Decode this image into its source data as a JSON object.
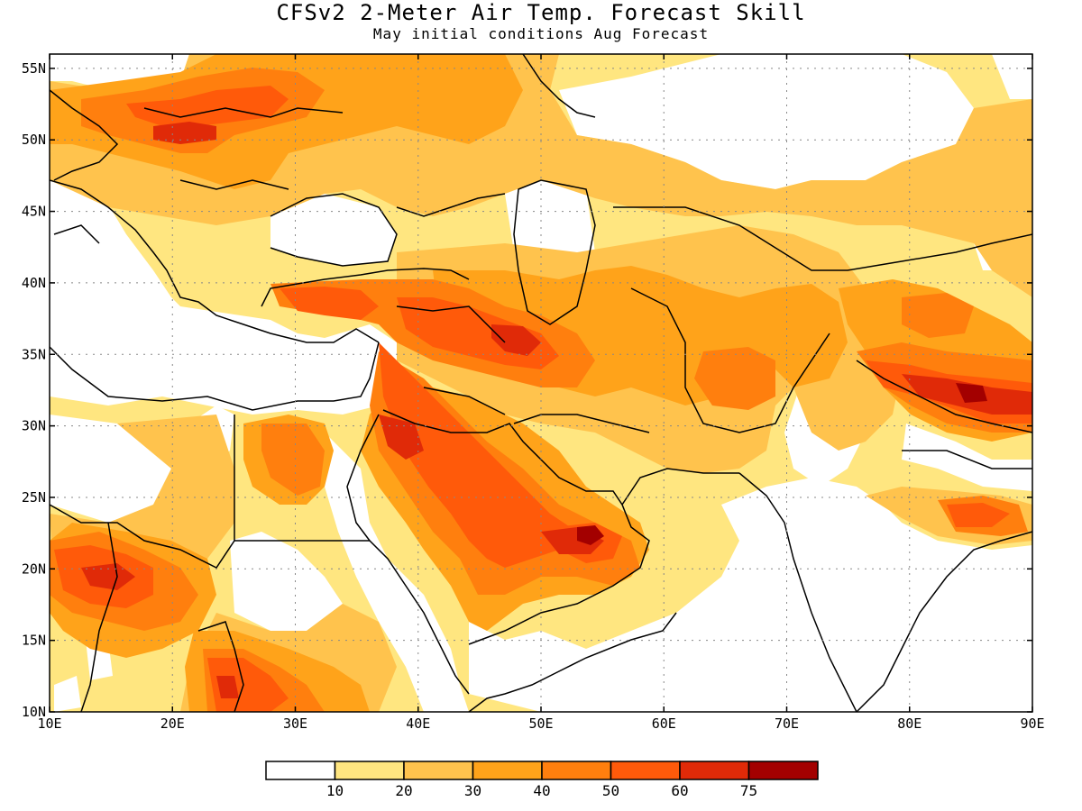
{
  "header": {
    "title": "CFSv2 2-Meter Air Temp. Forecast Skill",
    "subtitle": "May initial conditions  Aug Forecast"
  },
  "map": {
    "lon_range": [
      10,
      90
    ],
    "lat_range": [
      10,
      56
    ],
    "lon_ticks": [
      {
        "value": 10,
        "label": "10E"
      },
      {
        "value": 20,
        "label": "20E"
      },
      {
        "value": 30,
        "label": "30E"
      },
      {
        "value": 40,
        "label": "40E"
      },
      {
        "value": 50,
        "label": "50E"
      },
      {
        "value": 60,
        "label": "60E"
      },
      {
        "value": 70,
        "label": "70E"
      },
      {
        "value": 80,
        "label": "80E"
      },
      {
        "value": 90,
        "label": "90E"
      }
    ],
    "lat_ticks": [
      {
        "value": 10,
        "label": "10N"
      },
      {
        "value": 15,
        "label": "15N"
      },
      {
        "value": 20,
        "label": "20N"
      },
      {
        "value": 25,
        "label": "25N"
      },
      {
        "value": 30,
        "label": "30N"
      },
      {
        "value": 35,
        "label": "35N"
      },
      {
        "value": 40,
        "label": "40N"
      },
      {
        "value": 45,
        "label": "45N"
      },
      {
        "value": 50,
        "label": "50N"
      },
      {
        "value": 55,
        "label": "55N"
      }
    ],
    "grid": "dotted"
  },
  "legend": {
    "bins": [
      {
        "color": "#ffffff"
      },
      {
        "color": "#ffe680",
        "label": "10"
      },
      {
        "color": "#ffc34d",
        "label": "20"
      },
      {
        "color": "#ffa31a",
        "label": "30"
      },
      {
        "color": "#ff7f0e",
        "label": "40"
      },
      {
        "color": "#ff5a0a",
        "label": "50"
      },
      {
        "color": "#e02a08",
        "label": "60"
      },
      {
        "color": "#a30000",
        "label": "75"
      }
    ]
  }
}
